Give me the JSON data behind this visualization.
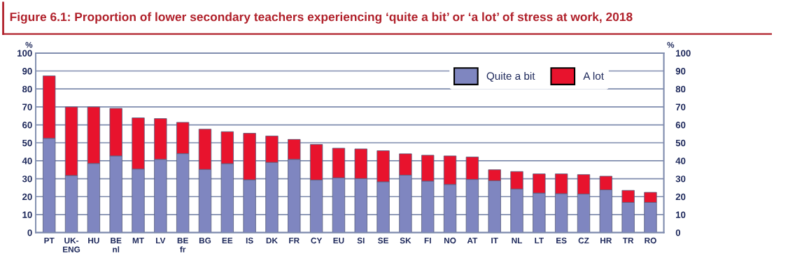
{
  "chart_data": {
    "type": "bar",
    "title": "Figure 6.1: Proportion of lower secondary teachers experiencing ‘quite a bit’ or ‘a lot’ of stress at work, 2018",
    "ylabel": "%",
    "y2label": "%",
    "categories": [
      "PT",
      "UK-\nENG",
      "HU",
      "BE\nnl",
      "MT",
      "LV",
      "BE\nfr",
      "BG",
      "EE",
      "IS",
      "DK",
      "FR",
      "CY",
      "EU",
      "SI",
      "SE",
      "SK",
      "FI",
      "NO",
      "AT",
      "IT",
      "NL",
      "LT",
      "ES",
      "CZ",
      "HR",
      "TR",
      "RO"
    ],
    "stacked": true,
    "series": [
      {
        "name": "Quite a bit",
        "color": "#7f86c0",
        "values": [
          52.5,
          31.8,
          38.5,
          42.7,
          35.4,
          40.8,
          44.0,
          35.2,
          38.4,
          29.4,
          39.1,
          40.8,
          29.3,
          30.5,
          30.1,
          28.3,
          32.0,
          28.7,
          26.8,
          29.6,
          28.9,
          24.3,
          22.0,
          21.7,
          21.5,
          23.8,
          16.8,
          16.8
        ]
      },
      {
        "name": "A lot",
        "color": "#e8132d",
        "values": [
          34.8,
          38.2,
          31.5,
          26.5,
          28.5,
          22.7,
          17.4,
          22.4,
          17.8,
          25.9,
          14.7,
          11.1,
          19.8,
          16.5,
          16.5,
          17.3,
          11.9,
          14.4,
          15.9,
          12.5,
          6.1,
          9.7,
          10.7,
          11.0,
          10.8,
          7.6,
          6.7,
          5.6
        ]
      }
    ],
    "ylim": [
      0,
      100
    ],
    "yticks": [
      0,
      10,
      20,
      30,
      40,
      50,
      60,
      70,
      80,
      90,
      100
    ],
    "y2lim": [
      0,
      100
    ],
    "y2ticks": [
      0,
      10,
      20,
      30,
      40,
      50,
      60,
      70,
      80,
      90,
      100
    ],
    "grid": "y",
    "legend": "top right"
  }
}
